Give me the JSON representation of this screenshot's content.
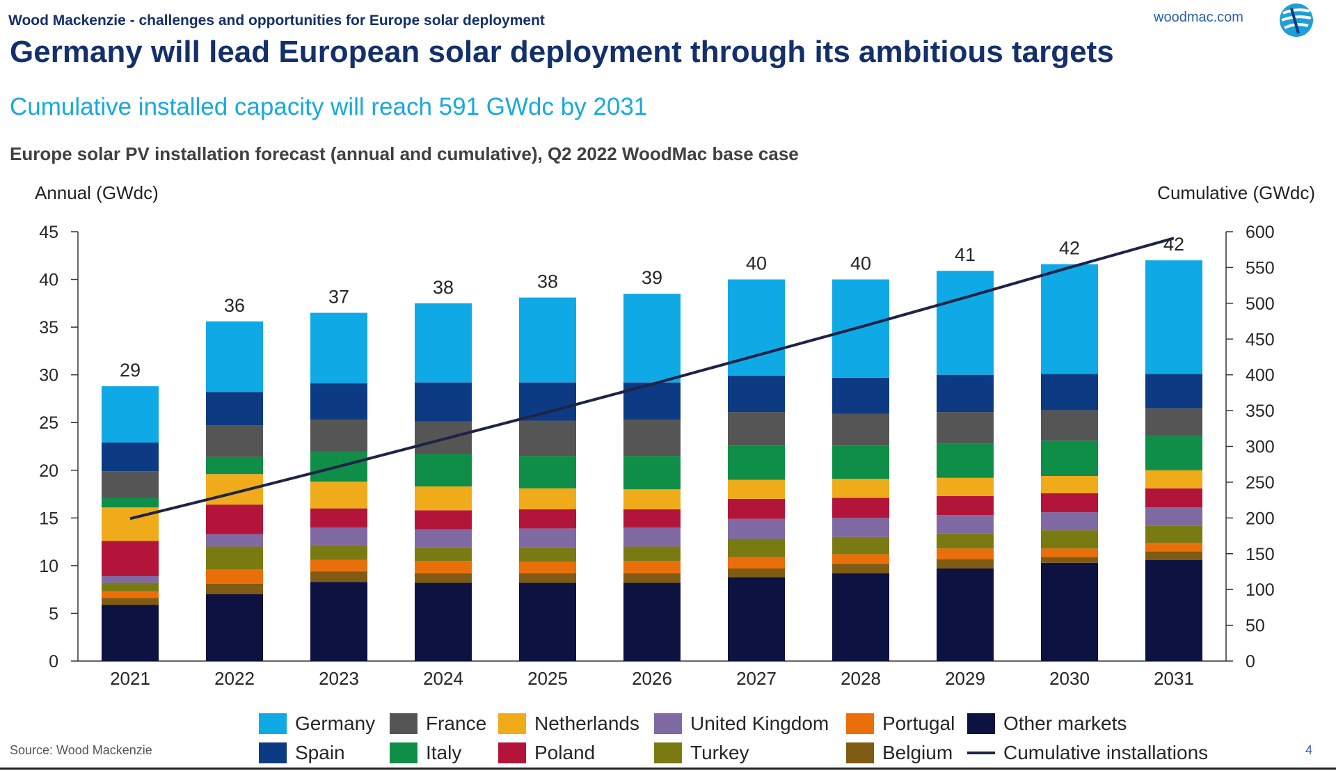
{
  "header": {
    "note": "Wood Mackenzie -  challenges and opportunities for Europe solar deployment",
    "site": "woodmac.com",
    "title": "Germany will lead European solar deployment through its ambitious targets",
    "subtitle": "Cumulative installed capacity will reach 591 GWdc by 2031"
  },
  "footer": {
    "source": "Source: Wood Mackenzie",
    "page_number": "4"
  },
  "colors": {
    "Germany": "#0fa9e6",
    "Spain": "#0c3b83",
    "France": "#555555",
    "Italy": "#0e8e47",
    "Netherlands": "#f0ab1b",
    "Poland": "#b3153a",
    "United Kingdom": "#7f6aa3",
    "Turkey": "#7a7a12",
    "Portugal": "#ea6f0b",
    "Belgium": "#7f5b14",
    "Other markets": "#0d1240",
    "Cumulative installations": "#1f2346"
  },
  "chart_data": {
    "type": "bar",
    "stacked": true,
    "title": "Europe solar PV installation forecast (annual and cumulative), Q2 2022 WoodMac base case",
    "ylabel": "Annual (GWdc)",
    "y2label": "Cumulative (GWdc)",
    "ylim": [
      0,
      45
    ],
    "y2lim": [
      0,
      600
    ],
    "yticks": [
      "0",
      "5",
      "10",
      "15",
      "20",
      "25",
      "30",
      "35",
      "40",
      "45"
    ],
    "y2ticks": [
      "0",
      "50",
      "100",
      "150",
      "200",
      "250",
      "300",
      "350",
      "400",
      "450",
      "500",
      "550",
      "600"
    ],
    "categories": [
      "2021",
      "2022",
      "2023",
      "2024",
      "2025",
      "2026",
      "2027",
      "2028",
      "2029",
      "2030",
      "2031"
    ],
    "totals": [
      "29",
      "36",
      "37",
      "38",
      "38",
      "39",
      "40",
      "40",
      "41",
      "42",
      "42"
    ],
    "series": [
      {
        "name": "Other markets",
        "values": [
          5.9,
          7.0,
          8.3,
          8.2,
          8.2,
          8.2,
          8.8,
          9.2,
          9.7,
          10.3,
          10.6
        ]
      },
      {
        "name": "Belgium",
        "values": [
          0.7,
          1.1,
          1.1,
          1.0,
          1.0,
          1.0,
          0.9,
          1.0,
          1.0,
          0.6,
          0.9
        ]
      },
      {
        "name": "Portugal",
        "values": [
          0.7,
          1.5,
          1.2,
          1.3,
          1.2,
          1.3,
          1.2,
          1.0,
          1.1,
          0.9,
          0.9
        ]
      },
      {
        "name": "Turkey",
        "values": [
          0.9,
          2.4,
          1.5,
          1.4,
          1.5,
          1.5,
          1.9,
          1.8,
          1.6,
          1.9,
          1.8
        ]
      },
      {
        "name": "United Kingdom",
        "values": [
          0.7,
          1.3,
          1.9,
          1.9,
          2.0,
          2.0,
          2.1,
          2.0,
          1.9,
          1.9,
          1.9
        ]
      },
      {
        "name": "Poland",
        "values": [
          3.7,
          3.1,
          2.0,
          2.0,
          2.0,
          1.9,
          2.1,
          2.1,
          2.0,
          2.0,
          2.0
        ]
      },
      {
        "name": "Netherlands",
        "values": [
          3.5,
          3.2,
          2.8,
          2.5,
          2.2,
          2.1,
          2.0,
          2.0,
          1.9,
          1.8,
          1.9
        ]
      },
      {
        "name": "Italy",
        "values": [
          1.0,
          1.8,
          3.1,
          3.4,
          3.4,
          3.5,
          3.6,
          3.5,
          3.6,
          3.7,
          3.6
        ]
      },
      {
        "name": "France",
        "values": [
          2.8,
          3.3,
          3.4,
          3.4,
          3.7,
          3.8,
          3.5,
          3.3,
          3.3,
          3.2,
          2.9
        ]
      },
      {
        "name": "Spain",
        "values": [
          3.0,
          3.5,
          3.8,
          4.1,
          4.0,
          3.9,
          3.8,
          3.8,
          3.9,
          3.8,
          3.6
        ]
      },
      {
        "name": "Germany",
        "values": [
          5.9,
          7.4,
          7.4,
          8.3,
          8.9,
          9.3,
          10.1,
          10.3,
          10.9,
          11.5,
          11.9
        ]
      }
    ],
    "line": {
      "name": "Cumulative installations",
      "axis": "right",
      "values": [
        199,
        235,
        272,
        310,
        348,
        387,
        427,
        467,
        508,
        550,
        591
      ]
    },
    "legend": {
      "position": "bottom",
      "items": [
        "Germany",
        "France",
        "Netherlands",
        "United Kingdom",
        "Portugal",
        "Other markets",
        "Spain",
        "Italy",
        "Poland",
        "Turkey",
        "Belgium",
        "Cumulative installations"
      ]
    }
  }
}
